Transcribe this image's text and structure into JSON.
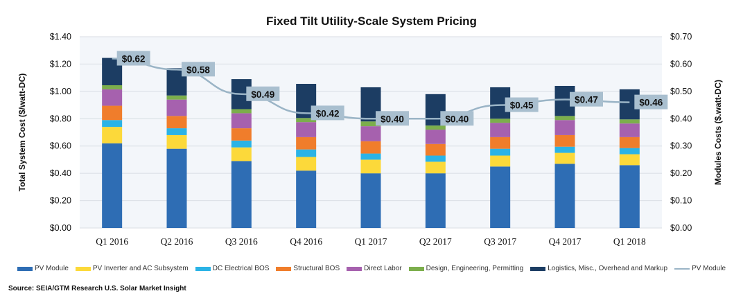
{
  "chart_data": {
    "type": "bar",
    "stacked": true,
    "title": "Fixed Tilt Utility-Scale System Pricing",
    "ylabel": "Total System Cost ($/watt-DC)",
    "y2label": "Modules Costs ($.watt-DC)",
    "ylim": [
      0,
      1.4
    ],
    "y2lim": [
      0,
      0.7
    ],
    "yticks": [
      "$0.00",
      "$0.20",
      "$0.40",
      "$0.60",
      "$0.80",
      "$1.00",
      "$1.20",
      "$1.40"
    ],
    "y2ticks": [
      "$0.00",
      "$0.10",
      "$0.20",
      "$0.30",
      "$0.40",
      "$0.50",
      "$0.60",
      "$0.70"
    ],
    "grid": true,
    "legend_position": "bottom",
    "categories": [
      "Q1 2016",
      "Q2 2016",
      "Q3 2016",
      "Q4 2016",
      "Q1 2017",
      "Q2 2017",
      "Q3 2017",
      "Q4 2017",
      "Q1 2018"
    ],
    "series": [
      {
        "name": "PV Module",
        "color": "#2e6db4",
        "values": [
          0.62,
          0.58,
          0.49,
          0.42,
          0.4,
          0.4,
          0.45,
          0.47,
          0.46
        ]
      },
      {
        "name": "PV Inverter and AC Subsystem",
        "color": "#fcd93a",
        "values": [
          0.12,
          0.1,
          0.1,
          0.1,
          0.1,
          0.085,
          0.08,
          0.08,
          0.08
        ]
      },
      {
        "name": "DC Electrical BOS",
        "color": "#2bb3e6",
        "values": [
          0.05,
          0.05,
          0.05,
          0.055,
          0.045,
          0.045,
          0.05,
          0.045,
          0.045
        ]
      },
      {
        "name": "Structural BOS",
        "color": "#f07d2b",
        "values": [
          0.105,
          0.09,
          0.09,
          0.09,
          0.09,
          0.085,
          0.085,
          0.085,
          0.08
        ]
      },
      {
        "name": "Direct Labor",
        "color": "#a661ae",
        "values": [
          0.12,
          0.12,
          0.11,
          0.11,
          0.11,
          0.105,
          0.105,
          0.11,
          0.1
        ]
      },
      {
        "name": "Design, Engineering, Permitting",
        "color": "#7cae4c",
        "values": [
          0.03,
          0.03,
          0.03,
          0.03,
          0.035,
          0.03,
          0.03,
          0.03,
          0.03
        ]
      },
      {
        "name": "Logistics, Misc., Overhead and Markup",
        "color": "#1c3d63",
        "values": [
          0.2,
          0.2,
          0.22,
          0.25,
          0.25,
          0.23,
          0.23,
          0.22,
          0.22
        ]
      }
    ],
    "line_series": {
      "name": "PV Module",
      "axis": "right",
      "color": "#9ab4c6",
      "values": [
        0.62,
        0.58,
        0.49,
        0.42,
        0.4,
        0.4,
        0.45,
        0.47,
        0.46
      ],
      "labels": [
        "$0.62",
        "$0.58",
        "$0.49",
        "$0.42",
        "$0.40",
        "$0.40",
        "$0.45",
        "$0.47",
        "$0.46"
      ]
    },
    "source": "Source: SEIA/GTM Research U.S. Solar Market Insight"
  }
}
